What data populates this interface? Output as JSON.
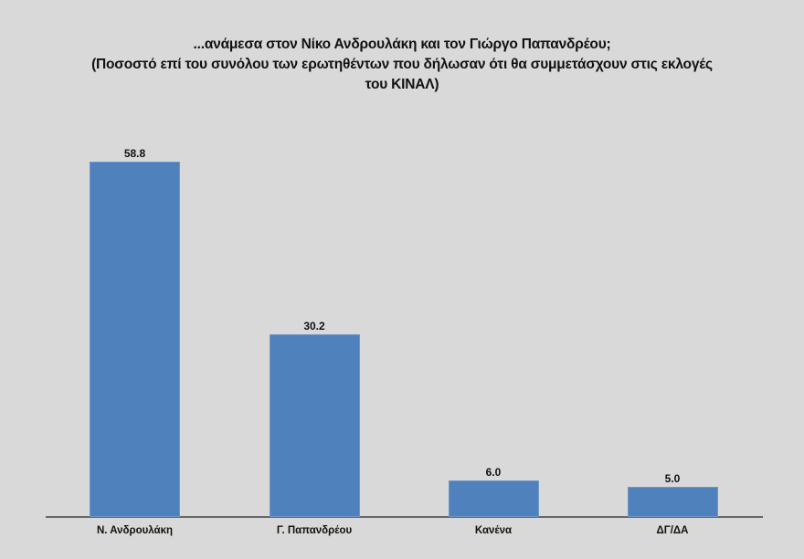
{
  "chart_data": {
    "type": "bar",
    "title": "...ανάμεσα στον Νίκο Ανδρουλάκη και τον Γιώργο Παπανδρέου;",
    "subtitle": "(Ποσοστό επί του συνόλου των ερωτηθέντων που δήλωσαν ότι θα συμμετάσχουν στις εκλογές του ΚΙΝΑΛ)",
    "title_lines": [
      "...ανάμεσα στον Νίκο Ανδρουλάκη και τον Γιώργο Παπανδρέου;",
      "(Ποσοστό επί του συνόλου των ερωτηθέντων που δήλωσαν ότι θα συμμετάσχουν στις εκλογές",
      "του ΚΙΝΑΛ)"
    ],
    "categories": [
      "Ν. Ανδρουλάκη",
      "Γ. Παπανδρέου",
      "Κανένα",
      "ΔΓ/ΔΑ"
    ],
    "values": [
      58.8,
      30.2,
      6.0,
      5.0
    ],
    "value_labels": [
      "58.8",
      "30.2",
      "6.0",
      "5.0"
    ],
    "xlabel": "",
    "ylabel": "",
    "ylim": [
      0,
      60
    ],
    "grid": false,
    "legend": "none",
    "bar_color": "#4f81bd",
    "background": "#d9d9d9"
  }
}
